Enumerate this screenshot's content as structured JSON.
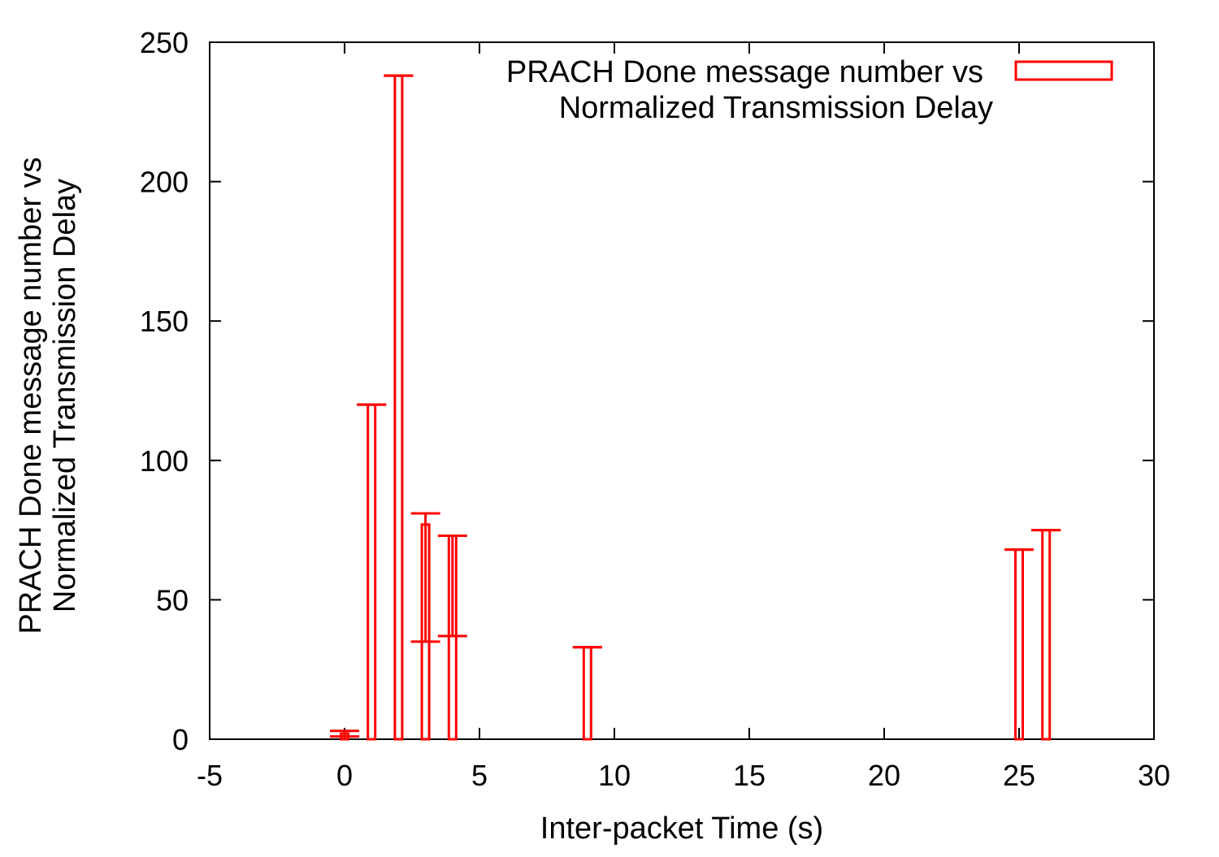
{
  "chart_data": {
    "type": "bar",
    "title": "",
    "xlabel": "Inter-packet Time (s)",
    "ylabel": [
      "PRACH Done message number vs",
      "Normalized Transmission Delay"
    ],
    "xlim": [
      -5,
      30
    ],
    "ylim": [
      0,
      250
    ],
    "xticks": [
      -5,
      0,
      5,
      10,
      15,
      20,
      25,
      30
    ],
    "yticks": [
      0,
      50,
      100,
      150,
      200,
      250
    ],
    "grid": false,
    "legend_position": "top-right",
    "series": [
      {
        "name": [
          "PRACH Done message number vs",
          "Normalized Transmission Delay"
        ],
        "color": "#ff0000",
        "style": "boxes with error bars",
        "x": [
          0,
          1,
          2,
          3,
          4,
          9,
          25,
          26
        ],
        "values": [
          2,
          120,
          238,
          77,
          73,
          33,
          68,
          75
        ],
        "error_low": [
          1,
          120,
          238,
          35,
          37,
          33,
          68,
          75
        ],
        "error_high": [
          3,
          120,
          238,
          81,
          73,
          33,
          68,
          75
        ]
      }
    ]
  }
}
